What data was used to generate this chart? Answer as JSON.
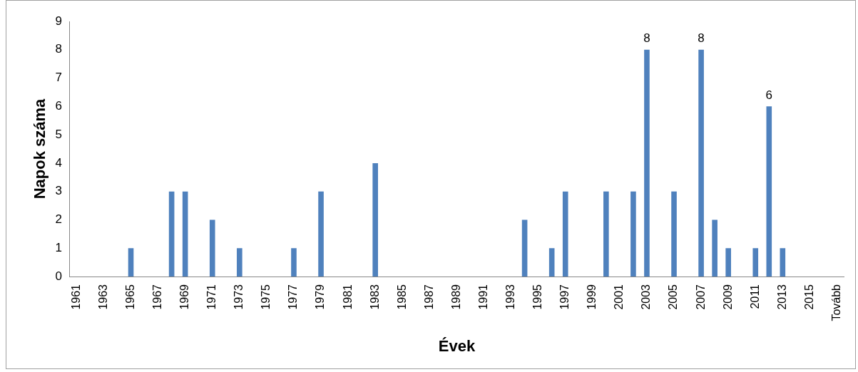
{
  "chart_data": {
    "type": "bar",
    "xlabel": "Évek",
    "ylabel": "Napok száma",
    "categories": [
      "1961",
      null,
      "1963",
      null,
      "1965",
      null,
      "1967",
      null,
      "1969",
      null,
      "1971",
      null,
      "1973",
      null,
      "1975",
      null,
      "1977",
      null,
      "1979",
      null,
      "1981",
      null,
      "1983",
      null,
      "1985",
      null,
      "1987",
      null,
      "1989",
      null,
      "1991",
      null,
      "1993",
      null,
      "1995",
      null,
      "1997",
      null,
      "1999",
      null,
      "2001",
      null,
      "2003",
      null,
      "2005",
      null,
      "2007",
      null,
      "2009",
      null,
      "2011",
      null,
      "2013",
      null,
      "2015",
      null,
      "Tovább"
    ],
    "values": [
      0,
      0,
      0,
      0,
      1,
      0,
      0,
      3,
      3,
      0,
      2,
      0,
      1,
      0,
      0,
      0,
      1,
      0,
      3,
      0,
      0,
      0,
      4,
      0,
      0,
      0,
      0,
      0,
      0,
      0,
      0,
      0,
      0,
      2,
      0,
      1,
      3,
      0,
      0,
      3,
      0,
      3,
      8,
      0,
      3,
      0,
      8,
      2,
      1,
      0,
      1,
      6,
      1,
      0,
      0,
      0,
      0
    ],
    "value_labels": [
      null,
      null,
      null,
      null,
      null,
      null,
      null,
      null,
      null,
      null,
      null,
      null,
      null,
      null,
      null,
      null,
      null,
      null,
      null,
      null,
      null,
      null,
      null,
      null,
      null,
      null,
      null,
      null,
      null,
      null,
      null,
      null,
      null,
      null,
      null,
      null,
      null,
      null,
      null,
      null,
      null,
      null,
      "8",
      null,
      null,
      null,
      "8",
      null,
      null,
      null,
      null,
      "6",
      null,
      null,
      null,
      null,
      null
    ],
    "color": "#4f81bd",
    "ylim": [
      0,
      9
    ],
    "yticks": [
      0,
      1,
      2,
      3,
      4,
      5,
      6,
      7,
      8,
      9
    ],
    "grid": false,
    "legend": false
  }
}
